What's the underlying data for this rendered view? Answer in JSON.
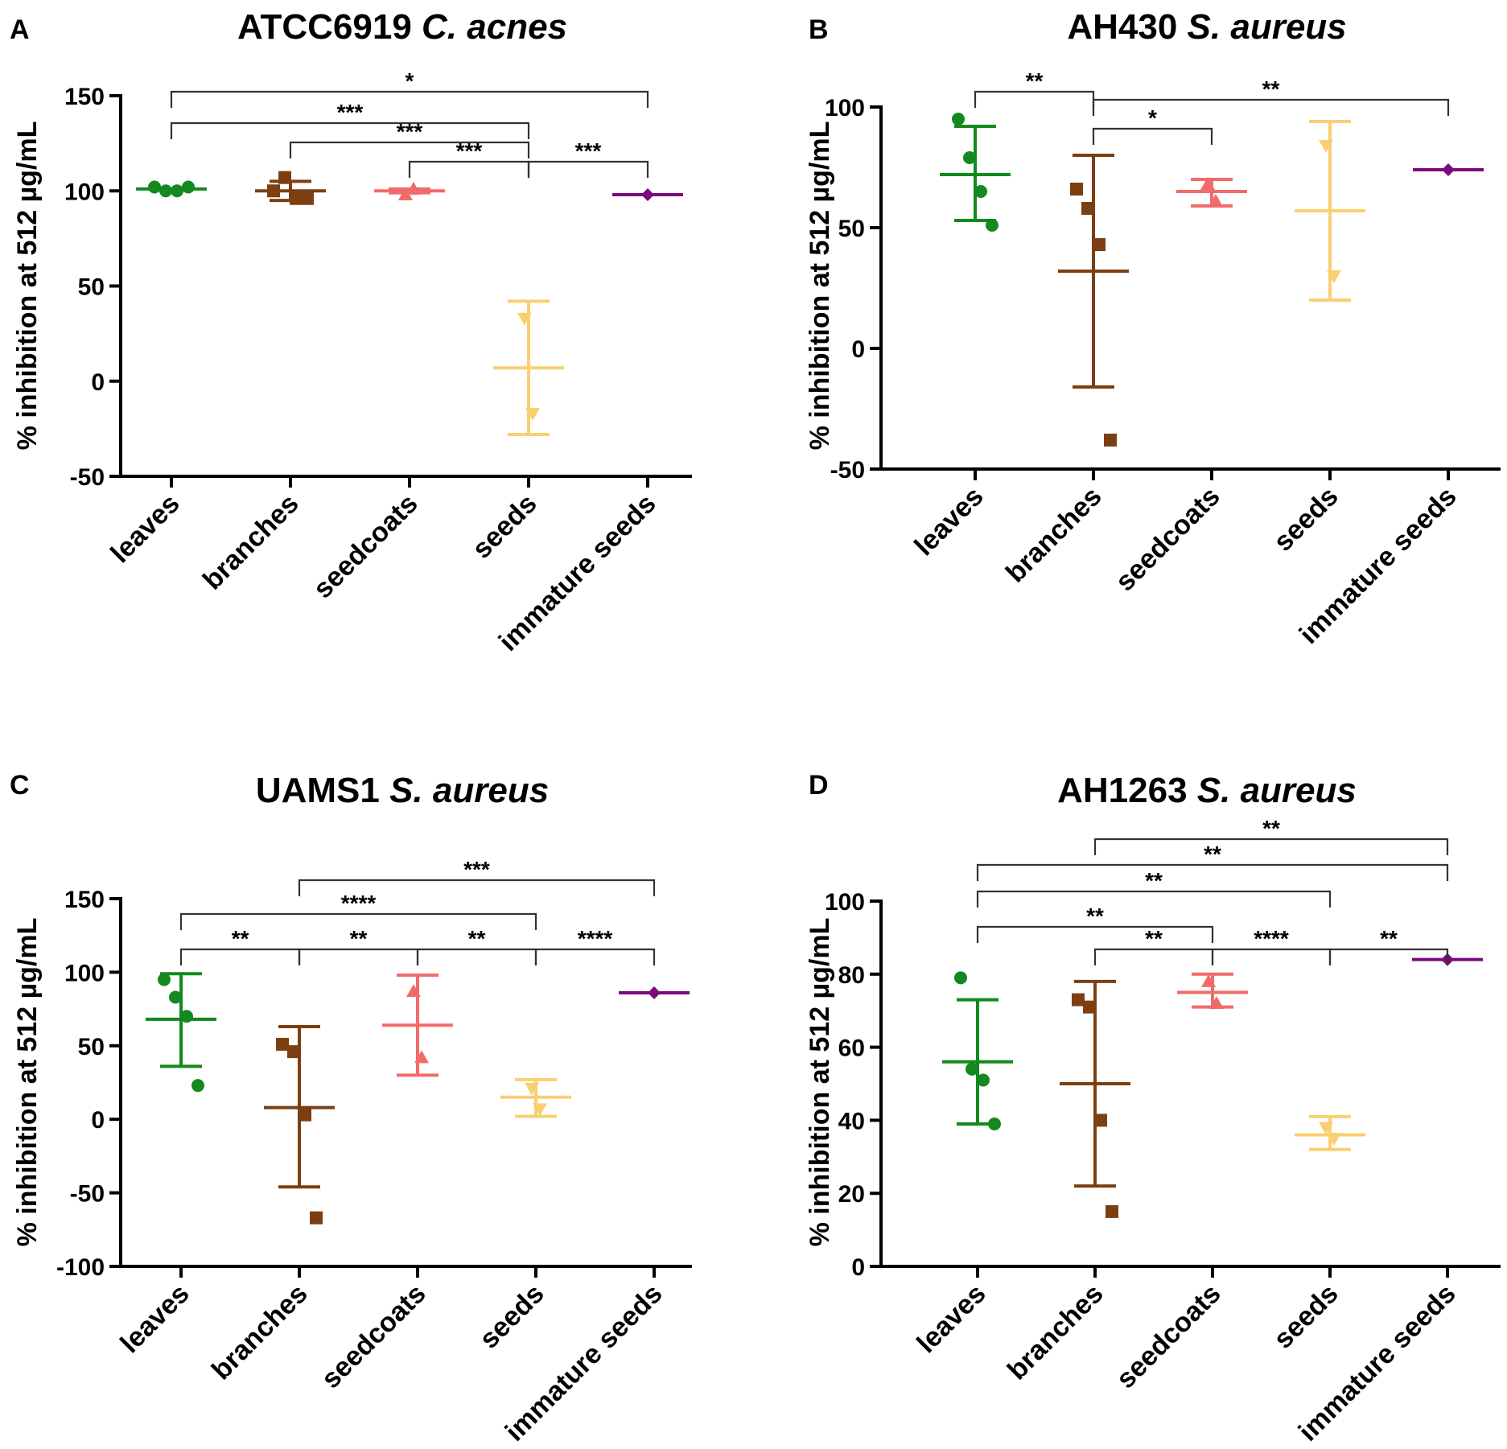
{
  "chart_data": [
    {
      "type": "scatter",
      "panel": "A",
      "title_strain": "ATCC6919",
      "title_species": "C. acnes",
      "ylabel": "% inhibition at 512 µg/mL",
      "ylim": [
        -50,
        150
      ],
      "yticks": [
        -50,
        0,
        50,
        100,
        150
      ],
      "categories": [
        "leaves",
        "branches",
        "seedcoats",
        "seeds",
        "immature seeds"
      ],
      "series": [
        {
          "name": "leaves",
          "marker": "circle",
          "color": "#13891f",
          "points": [
            102,
            100,
            100,
            102
          ],
          "mean": 101,
          "sd_low": 101,
          "sd_high": 101
        },
        {
          "name": "branches",
          "marker": "square",
          "color": "#7b3f12",
          "points": [
            100,
            107,
            96,
            96
          ],
          "mean": 100,
          "sd_low": 95,
          "sd_high": 105
        },
        {
          "name": "seedcoats",
          "marker": "triangle-up",
          "color": "#f26b6b",
          "points": [
            98,
            101
          ],
          "mean": 100,
          "sd_low": 99,
          "sd_high": 101
        },
        {
          "name": "seeds",
          "marker": "triangle-down",
          "color": "#f9cf72",
          "points": [
            33,
            -17
          ],
          "mean": 7,
          "sd_low": -28,
          "sd_high": 42
        },
        {
          "name": "immature seeds",
          "marker": "diamond",
          "color": "#7b0a7d",
          "points": [
            98
          ],
          "mean": 98,
          "sd_low": 98,
          "sd_high": 98
        }
      ],
      "significance": [
        {
          "from": 0,
          "to": 4,
          "label": "*"
        },
        {
          "from": 0,
          "to": 3,
          "label": "***"
        },
        {
          "from": 1,
          "to": 3,
          "label": "***"
        },
        {
          "from": 2,
          "to": 3,
          "label": "***"
        },
        {
          "from": 3,
          "to": 4,
          "label": "***"
        }
      ]
    },
    {
      "type": "scatter",
      "panel": "B",
      "title_strain": "AH430",
      "title_species": "S. aureus",
      "ylabel": "% inhibition at 512 µg/mL",
      "ylim": [
        -50,
        100
      ],
      "yticks": [
        -50,
        0,
        50,
        100
      ],
      "categories": [
        "leaves",
        "branches",
        "seedcoats",
        "seeds",
        "immature seeds"
      ],
      "series": [
        {
          "name": "leaves",
          "marker": "circle",
          "color": "#13891f",
          "points": [
            95,
            79,
            65,
            51
          ],
          "mean": 72,
          "sd_low": 53,
          "sd_high": 92
        },
        {
          "name": "branches",
          "marker": "square",
          "color": "#7b3f12",
          "points": [
            66,
            58,
            43,
            -38
          ],
          "mean": 32,
          "sd_low": -16,
          "sd_high": 80
        },
        {
          "name": "seedcoats",
          "marker": "triangle-up",
          "color": "#f26b6b",
          "points": [
            68,
            61
          ],
          "mean": 65,
          "sd_low": 59,
          "sd_high": 70
        },
        {
          "name": "seeds",
          "marker": "triangle-down",
          "color": "#f9cf72",
          "points": [
            84,
            30
          ],
          "mean": 57,
          "sd_low": 20,
          "sd_high": 94
        },
        {
          "name": "immature seeds",
          "marker": "diamond",
          "color": "#7b0a7d",
          "points": [
            74
          ],
          "mean": 74,
          "sd_low": 74,
          "sd_high": 74
        }
      ],
      "significance": [
        {
          "from": 0,
          "to": 1,
          "label": "**"
        },
        {
          "from": 1,
          "to": 4,
          "label": "**"
        },
        {
          "from": 1,
          "to": 2,
          "label": "*"
        }
      ]
    },
    {
      "type": "scatter",
      "panel": "C",
      "title_strain": "UAMS1",
      "title_species": "S. aureus",
      "ylabel": "% inhibition at 512 µg/mL",
      "ylim": [
        -100,
        150
      ],
      "yticks": [
        -100,
        -50,
        0,
        50,
        100,
        150
      ],
      "categories": [
        "leaves",
        "branches",
        "seedcoats",
        "seeds",
        "immature seeds"
      ],
      "series": [
        {
          "name": "leaves",
          "marker": "circle",
          "color": "#13891f",
          "points": [
            95,
            83,
            70,
            23
          ],
          "mean": 68,
          "sd_low": 36,
          "sd_high": 99
        },
        {
          "name": "branches",
          "marker": "square",
          "color": "#7b3f12",
          "points": [
            51,
            46,
            3,
            -67
          ],
          "mean": 8,
          "sd_low": -46,
          "sd_high": 63
        },
        {
          "name": "seedcoats",
          "marker": "triangle-up",
          "color": "#f26b6b",
          "points": [
            87,
            42
          ],
          "mean": 64,
          "sd_low": 30,
          "sd_high": 98
        },
        {
          "name": "seeds",
          "marker": "triangle-down",
          "color": "#f9cf72",
          "points": [
            21,
            7
          ],
          "mean": 15,
          "sd_low": 2,
          "sd_high": 27
        },
        {
          "name": "immature seeds",
          "marker": "diamond",
          "color": "#7b0a7d",
          "points": [
            86
          ],
          "mean": 86,
          "sd_low": 86,
          "sd_high": 86
        }
      ],
      "significance": [
        {
          "from": 1,
          "to": 4,
          "label": "***"
        },
        {
          "from": 0,
          "to": 3,
          "label": "****"
        },
        {
          "from": 0,
          "to": 1,
          "label": "**"
        },
        {
          "from": 1,
          "to": 2,
          "label": "**"
        },
        {
          "from": 2,
          "to": 3,
          "label": "**"
        },
        {
          "from": 3,
          "to": 4,
          "label": "****"
        }
      ]
    },
    {
      "type": "scatter",
      "panel": "D",
      "title_strain": "AH1263",
      "title_species": "S. aureus",
      "ylabel": "% inhibition at 512 µg/mL",
      "ylim": [
        0,
        100
      ],
      "yticks": [
        0,
        20,
        40,
        60,
        80,
        100
      ],
      "categories": [
        "leaves",
        "branches",
        "seedcoats",
        "seeds",
        "immature seeds"
      ],
      "series": [
        {
          "name": "leaves",
          "marker": "circle",
          "color": "#13891f",
          "points": [
            79,
            54,
            51,
            39
          ],
          "mean": 56,
          "sd_low": 39,
          "sd_high": 73
        },
        {
          "name": "branches",
          "marker": "square",
          "color": "#7b3f12",
          "points": [
            73,
            71,
            40,
            15
          ],
          "mean": 50,
          "sd_low": 22,
          "sd_high": 78
        },
        {
          "name": "seedcoats",
          "marker": "triangle-up",
          "color": "#f26b6b",
          "points": [
            78,
            72
          ],
          "mean": 75,
          "sd_low": 71,
          "sd_high": 80
        },
        {
          "name": "seeds",
          "marker": "triangle-down",
          "color": "#f9cf72",
          "points": [
            38,
            35
          ],
          "mean": 36,
          "sd_low": 32,
          "sd_high": 41
        },
        {
          "name": "immature seeds",
          "marker": "diamond",
          "color": "#7b0a7d",
          "points": [
            84
          ],
          "mean": 84,
          "sd_low": 84,
          "sd_high": 84
        }
      ],
      "significance": [
        {
          "from": 1,
          "to": 4,
          "label": "**"
        },
        {
          "from": 0,
          "to": 4,
          "label": "**"
        },
        {
          "from": 0,
          "to": 3,
          "label": "**"
        },
        {
          "from": 0,
          "to": 2,
          "label": "**"
        },
        {
          "from": 1,
          "to": 2,
          "label": "**"
        },
        {
          "from": 2,
          "to": 3,
          "label": "****"
        },
        {
          "from": 3,
          "to": 4,
          "label": "**"
        }
      ]
    }
  ]
}
